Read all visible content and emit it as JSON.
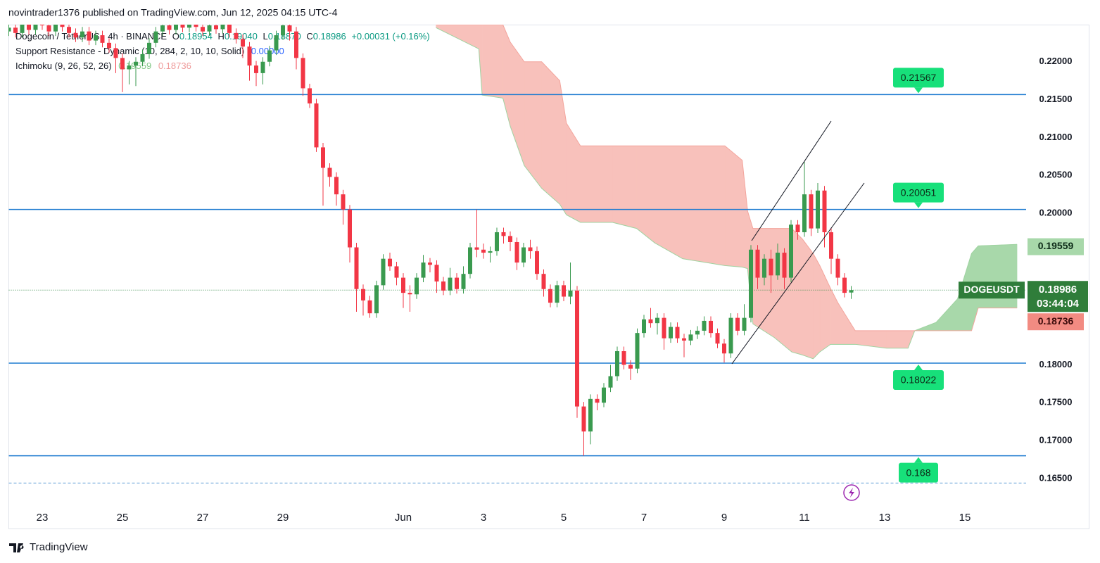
{
  "header": "novintrader1376 published on TradingView.com, Jun 12, 2025 04:15 UTC-4",
  "footer": "TradingView",
  "chart_data": {
    "type": "candlestick",
    "legend": {
      "symbol": "Dogecoin / TetherUS · 4h · BINANCE",
      "ohlc": [
        {
          "key": "O",
          "value": "0.18954"
        },
        {
          "key": "H",
          "value": "0.19040"
        },
        {
          "key": "L",
          "value": "0.18870"
        },
        {
          "key": "C",
          "value": "0.18986"
        }
      ],
      "change": "+0.00031 (+0.16%)",
      "sr_name": "Support Resistance - Dynamic (10, 284, 2, 10, 10, Solid)",
      "sr_value": "0.00000",
      "ichimoku_name": "Ichimoku (9, 26, 52, 26)"
    },
    "xlim": [
      0,
      152
    ],
    "ylim": [
      0.1583,
      0.2249
    ],
    "xticks": [
      {
        "value": 5,
        "label": "23"
      },
      {
        "value": 17,
        "label": "25"
      },
      {
        "value": 29,
        "label": "27"
      },
      {
        "value": 41,
        "label": "29"
      },
      {
        "value": 59,
        "label": "Jun"
      },
      {
        "value": 71,
        "label": "3"
      },
      {
        "value": 83,
        "label": "5"
      },
      {
        "value": 95,
        "label": "7"
      },
      {
        "value": 107,
        "label": "9"
      },
      {
        "value": 119,
        "label": "11"
      },
      {
        "value": 131,
        "label": "13"
      },
      {
        "value": 143,
        "label": "15"
      }
    ],
    "yticks": [
      {
        "value": 0.165,
        "label": "0.16500"
      },
      {
        "value": 0.17,
        "label": "0.17000"
      },
      {
        "value": 0.175,
        "label": "0.17500"
      },
      {
        "value": 0.18,
        "label": "0.18000"
      },
      {
        "value": 0.185,
        "label": "0.18500"
      },
      {
        "value": 0.19,
        "label": "0.19000"
      },
      {
        "value": 0.195,
        "label": "0.19500"
      },
      {
        "value": 0.2,
        "label": "0.20000"
      },
      {
        "value": 0.205,
        "label": "0.20500"
      },
      {
        "value": 0.21,
        "label": "0.21000"
      },
      {
        "value": 0.215,
        "label": "0.21500"
      },
      {
        "value": 0.22,
        "label": "0.22000"
      }
    ],
    "grid": false,
    "up_color": "#3a9a4f",
    "down_color": "#f23645",
    "open": [
      0.224,
      0.2245,
      0.2238,
      0.225,
      0.2242,
      0.2255,
      0.2248,
      0.224,
      0.2252,
      0.2246,
      0.2238,
      0.2232,
      0.224,
      0.2228,
      0.2235,
      0.2225,
      0.2218,
      0.2205,
      0.219,
      0.2195,
      0.22,
      0.221,
      0.2225,
      0.224,
      0.2248,
      0.2242,
      0.225,
      0.2245,
      0.2252,
      0.2246,
      0.224,
      0.2248,
      0.2243,
      0.225,
      0.2238,
      0.223,
      0.222,
      0.2195,
      0.2185,
      0.22,
      0.2215,
      0.2235,
      0.2248,
      0.224,
      0.2205,
      0.2165,
      0.2145,
      0.2087,
      0.206,
      0.2048,
      0.2025,
      0.2005,
      0.1955,
      0.19,
      0.1885,
      0.1868,
      0.1905,
      0.194,
      0.193,
      0.1915,
      0.1895,
      0.1893,
      0.1915,
      0.1935,
      0.1932,
      0.191,
      0.1898,
      0.1915,
      0.19,
      0.192,
      0.1955,
      0.1952,
      0.1948,
      0.195,
      0.1975,
      0.197,
      0.1962,
      0.1935,
      0.1955,
      0.195,
      0.192,
      0.19,
      0.1882,
      0.1905,
      0.189,
      0.1898,
      0.1745,
      0.1712,
      0.1755,
      0.175,
      0.177,
      0.1785,
      0.1818,
      0.18,
      0.1795,
      0.1842,
      0.186,
      0.1855,
      0.1862,
      0.1835,
      0.185,
      0.1835,
      0.1832,
      0.184,
      0.1845,
      0.1858,
      0.1842,
      0.1828,
      0.1815,
      0.1862,
      0.1845,
      0.1862,
      0.1952,
      0.1915,
      0.194,
      0.1918,
      0.1948,
      0.1915,
      0.1985,
      0.1975,
      0.2025,
      0.198,
      0.203,
      0.1975,
      0.194,
      0.1915,
      0.18954
    ],
    "high": [
      0.2251,
      0.2251,
      0.2256,
      0.2256,
      0.2261,
      0.2261,
      0.2254,
      0.2258,
      0.2258,
      0.2252,
      0.2244,
      0.2246,
      0.2246,
      0.2241,
      0.2241,
      0.2231,
      0.2224,
      0.2211,
      0.2201,
      0.2206,
      0.2216,
      0.2231,
      0.2246,
      0.2254,
      0.2254,
      0.2256,
      0.2256,
      0.2258,
      0.2258,
      0.2252,
      0.2254,
      0.2254,
      0.2256,
      0.2256,
      0.2244,
      0.2236,
      0.2226,
      0.2201,
      0.2206,
      0.2221,
      0.2241,
      0.2254,
      0.2254,
      0.2246,
      0.2211,
      0.2171,
      0.2151,
      0.2093,
      0.2066,
      0.2054,
      0.2031,
      0.2011,
      0.1961,
      0.1906,
      0.1891,
      0.1911,
      0.1946,
      0.1948,
      0.1936,
      0.1921,
      0.1905,
      0.1921,
      0.1945,
      0.1941,
      0.1938,
      0.1916,
      0.1928,
      0.1921,
      0.193,
      0.1961,
      0.2005,
      0.196,
      0.1956,
      0.1981,
      0.1981,
      0.1976,
      0.1968,
      0.1961,
      0.1965,
      0.1956,
      0.1926,
      0.1906,
      0.1911,
      0.1911,
      0.1935,
      0.1904,
      0.1751,
      0.1761,
      0.1761,
      0.1776,
      0.18,
      0.1824,
      0.1824,
      0.1806,
      0.1848,
      0.1866,
      0.1875,
      0.1868,
      0.1868,
      0.1856,
      0.1856,
      0.1841,
      0.1846,
      0.1851,
      0.1864,
      0.1864,
      0.1848,
      0.1834,
      0.1868,
      0.1868,
      0.188,
      0.1958,
      0.1958,
      0.1946,
      0.1952,
      0.196,
      0.1954,
      0.1991,
      0.1991,
      0.2068,
      0.2031,
      0.204,
      0.2036,
      0.1981,
      0.1946,
      0.1921,
      0.1904
    ],
    "low": [
      0.2234,
      0.2232,
      0.2232,
      0.2236,
      0.2236,
      0.2242,
      0.2234,
      0.2234,
      0.224,
      0.2232,
      0.2226,
      0.2226,
      0.2222,
      0.2222,
      0.2219,
      0.2212,
      0.2185,
      0.216,
      0.217,
      0.2168,
      0.2194,
      0.2204,
      0.2219,
      0.2234,
      0.2236,
      0.2236,
      0.2239,
      0.2239,
      0.224,
      0.2234,
      0.2234,
      0.2237,
      0.2237,
      0.2232,
      0.2224,
      0.2205,
      0.2175,
      0.2168,
      0.217,
      0.2194,
      0.2209,
      0.2229,
      0.2228,
      0.219,
      0.2155,
      0.2139,
      0.2081,
      0.201,
      0.2035,
      0.201,
      0.1985,
      0.1935,
      0.187,
      0.1865,
      0.1862,
      0.1862,
      0.1899,
      0.1924,
      0.1905,
      0.1875,
      0.187,
      0.1887,
      0.1909,
      0.1922,
      0.1895,
      0.1892,
      0.1892,
      0.1894,
      0.1894,
      0.1914,
      0.1942,
      0.194,
      0.1935,
      0.1944,
      0.196,
      0.195,
      0.1925,
      0.1929,
      0.194,
      0.1912,
      0.189,
      0.1876,
      0.1876,
      0.1884,
      0.188,
      0.173,
      0.168,
      0.1695,
      0.174,
      0.1744,
      0.1764,
      0.1779,
      0.1794,
      0.178,
      0.1789,
      0.1836,
      0.1849,
      0.184,
      0.182,
      0.1829,
      0.1829,
      0.181,
      0.1826,
      0.1834,
      0.1839,
      0.1836,
      0.1822,
      0.1803,
      0.1809,
      0.1839,
      0.1839,
      0.1856,
      0.19,
      0.1905,
      0.1895,
      0.1912,
      0.19,
      0.1909,
      0.1965,
      0.1969,
      0.197,
      0.1974,
      0.1955,
      0.192,
      0.1905,
      0.1889,
      0.1887
    ],
    "close": [
      0.2245,
      0.2238,
      0.225,
      0.2242,
      0.2255,
      0.2248,
      0.224,
      0.2252,
      0.2246,
      0.2238,
      0.2232,
      0.224,
      0.2228,
      0.2235,
      0.2225,
      0.2218,
      0.2205,
      0.219,
      0.2195,
      0.22,
      0.221,
      0.2225,
      0.224,
      0.2248,
      0.2242,
      0.225,
      0.2245,
      0.2252,
      0.2246,
      0.224,
      0.2248,
      0.2243,
      0.225,
      0.2238,
      0.223,
      0.222,
      0.2195,
      0.2185,
      0.22,
      0.2215,
      0.2235,
      0.2248,
      0.224,
      0.2205,
      0.2165,
      0.2145,
      0.2087,
      0.206,
      0.2048,
      0.2025,
      0.2005,
      0.1955,
      0.19,
      0.1885,
      0.1868,
      0.1905,
      0.194,
      0.193,
      0.1915,
      0.1895,
      0.1893,
      0.1915,
      0.1935,
      0.1932,
      0.191,
      0.1898,
      0.1915,
      0.19,
      0.192,
      0.1955,
      0.1952,
      0.1948,
      0.195,
      0.1975,
      0.197,
      0.1962,
      0.1935,
      0.1955,
      0.195,
      0.192,
      0.19,
      0.1882,
      0.1905,
      0.189,
      0.1898,
      0.1745,
      0.1712,
      0.1755,
      0.175,
      0.177,
      0.1785,
      0.1818,
      0.18,
      0.1795,
      0.1842,
      0.186,
      0.1855,
      0.1862,
      0.1835,
      0.185,
      0.1835,
      0.1832,
      0.184,
      0.1845,
      0.1858,
      0.1842,
      0.1828,
      0.1815,
      0.1862,
      0.1845,
      0.1862,
      0.1952,
      0.1915,
      0.194,
      0.1918,
      0.1948,
      0.1915,
      0.1985,
      0.1975,
      0.2025,
      0.198,
      0.203,
      0.1975,
      0.194,
      0.1915,
      0.1895,
      0.18986
    ],
    "levels": {
      "color": "#1e7bd0",
      "values": [
        0.21567,
        0.20051,
        0.18022,
        0.168
      ]
    },
    "dashed_level": 0.1644,
    "ichimoku": {
      "x": [
        63.9,
        70.3,
        70.8,
        73.9,
        75.0,
        77.1,
        79.7,
        82.4,
        83.4,
        85.5,
        90.3,
        93.9,
        96.6,
        100.8,
        107.1,
        109.7,
        110.5,
        111.3,
        114.5,
        117.1,
        118.7,
        120.3,
        121.3,
        122.9,
        124.0,
        126.6,
        131.3,
        134.5,
        135.5,
        138.7,
        141.9,
        144.0,
        145.0,
        150.8
      ],
      "span_a": [
        0.2245,
        0.2217,
        0.2156,
        0.2152,
        0.2115,
        0.2063,
        0.2033,
        0.2012,
        0.1998,
        0.1988,
        0.1988,
        0.198,
        0.1961,
        0.194,
        0.1931,
        0.1929,
        0.1927,
        0.1854,
        0.1836,
        0.1817,
        0.1813,
        0.1808,
        0.1817,
        0.1827,
        0.1827,
        0.1827,
        0.1822,
        0.1822,
        0.1845,
        0.1856,
        0.1887,
        0.1947,
        0.1957,
        0.1959
      ],
      "span_b": [
        0.2249,
        0.2249,
        0.2249,
        0.2249,
        0.2226,
        0.22,
        0.22,
        0.2175,
        0.2119,
        0.2089,
        0.2089,
        0.2089,
        0.2089,
        0.2089,
        0.2089,
        0.207,
        0.2003,
        0.198,
        0.198,
        0.198,
        0.1966,
        0.1947,
        0.1931,
        0.1901,
        0.1882,
        0.1845,
        0.1845,
        0.1845,
        0.1845,
        0.1845,
        0.1845,
        0.1845,
        0.1875,
        0.1875
      ],
      "bull_color": "#a8d8aa",
      "bear_color": "#f8c1bb",
      "lead_a": 0.19559,
      "lead_b": 0.18736
    },
    "last_price": {
      "symbol": "DOGEUSDT",
      "value": 0.18986,
      "countdown": "03:44:04"
    }
  }
}
